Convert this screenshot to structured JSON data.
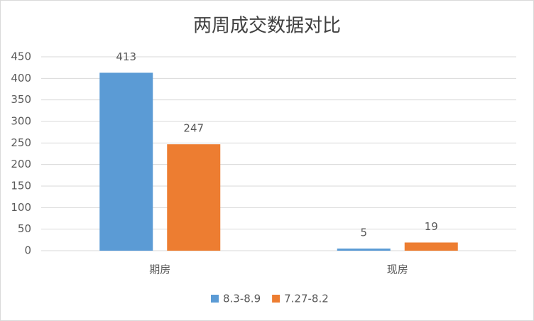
{
  "chart_data": {
    "type": "bar",
    "title": "两周成交数据对比",
    "categories": [
      "期房",
      "现房"
    ],
    "series": [
      {
        "name": "8.3-8.9",
        "color": "#5b9bd5",
        "values": [
          413,
          5
        ]
      },
      {
        "name": "7.27-8.2",
        "color": "#ed7d31",
        "values": [
          247,
          19
        ]
      }
    ],
    "ylim": [
      0,
      450
    ],
    "yticks": [
      0,
      50,
      100,
      150,
      200,
      250,
      300,
      350,
      400,
      450
    ],
    "grid": true,
    "legend": "bottom",
    "data_labels": true
  }
}
